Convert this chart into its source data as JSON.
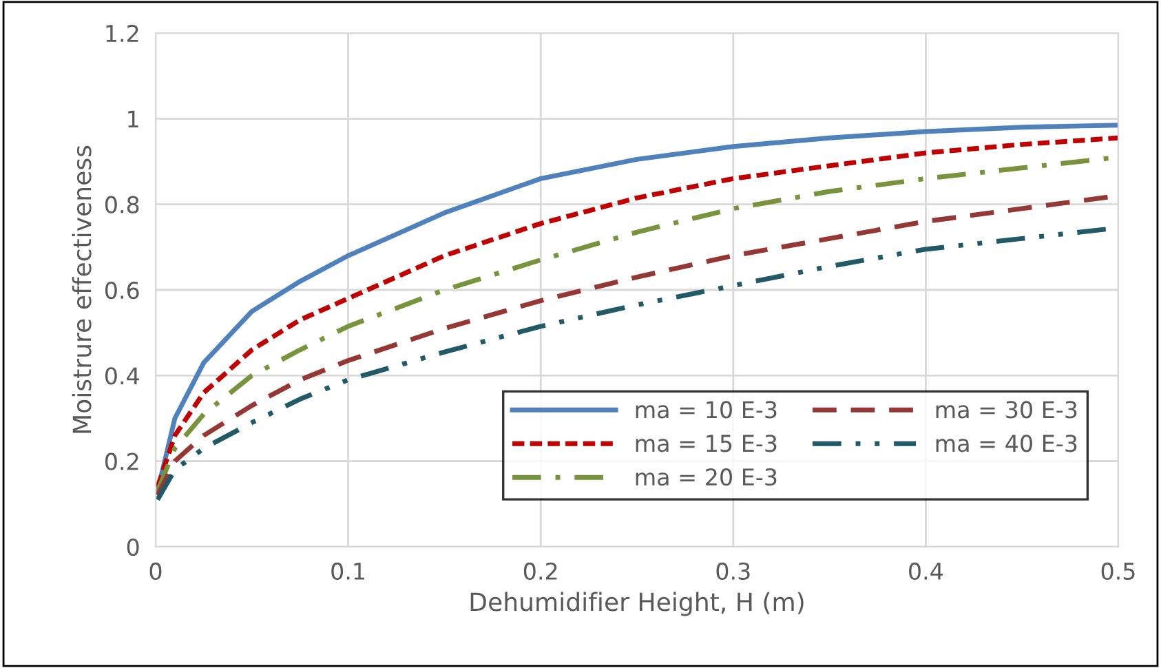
{
  "chart_data": {
    "type": "line",
    "xlabel": "Dehumidifier Height, H (m)",
    "ylabel": "Moistrure effectiveness",
    "x": [
      0.001,
      0.01,
      0.025,
      0.05,
      0.075,
      0.1,
      0.15,
      0.2,
      0.25,
      0.3,
      0.35,
      0.4,
      0.45,
      0.5
    ],
    "series": [
      {
        "name": "ma = 10 E-3",
        "color": "#4f81bd",
        "line_style": "solid",
        "values": [
          0.13,
          0.3,
          0.43,
          0.55,
          0.62,
          0.68,
          0.78,
          0.86,
          0.905,
          0.935,
          0.955,
          0.97,
          0.98,
          0.985
        ]
      },
      {
        "name": "ma = 15 E-3",
        "color": "#c00000",
        "line_style": "dotted",
        "values": [
          0.14,
          0.26,
          0.36,
          0.46,
          0.53,
          0.58,
          0.68,
          0.755,
          0.815,
          0.86,
          0.89,
          0.92,
          0.94,
          0.955
        ]
      },
      {
        "name": "ma = 20 E-3",
        "color": "#77933c",
        "line_style": "dashdot",
        "values": [
          0.13,
          0.23,
          0.31,
          0.4,
          0.46,
          0.515,
          0.6,
          0.67,
          0.735,
          0.79,
          0.83,
          0.86,
          0.885,
          0.91
        ]
      },
      {
        "name": "ma = 30 E-3",
        "color": "#953735",
        "line_style": "dashed",
        "values": [
          0.12,
          0.2,
          0.26,
          0.33,
          0.39,
          0.435,
          0.51,
          0.575,
          0.63,
          0.68,
          0.72,
          0.76,
          0.79,
          0.82
        ]
      },
      {
        "name": "ma = 40 E-3",
        "color": "#215967",
        "line_style": "dashdotdot",
        "values": [
          0.11,
          0.18,
          0.23,
          0.29,
          0.345,
          0.39,
          0.455,
          0.515,
          0.565,
          0.61,
          0.655,
          0.695,
          0.72,
          0.745
        ]
      }
    ],
    "xlim": [
      0,
      0.5
    ],
    "xticks": [
      0,
      0.1,
      0.2,
      0.3,
      0.4,
      0.5
    ],
    "ylim": [
      0,
      1.2
    ],
    "yticks": [
      0,
      0.2,
      0.4,
      0.6,
      0.8,
      1,
      1.2
    ],
    "grid": true,
    "legend": "bottom right",
    "marker": "none"
  }
}
